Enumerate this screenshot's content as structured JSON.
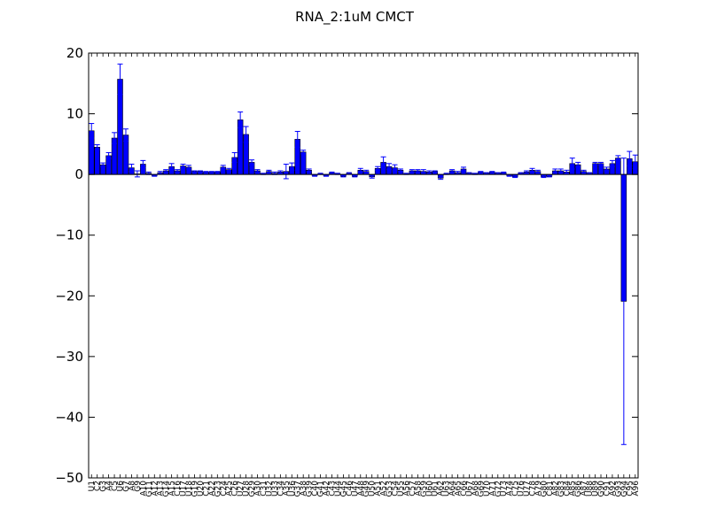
{
  "chart_data": {
    "type": "bar",
    "title": "RNA_2:1uM  CMCT",
    "xlabel": "",
    "ylabel": "",
    "ylim": [
      -50,
      20
    ],
    "yticks": [
      20,
      10,
      0,
      -10,
      -20,
      -30,
      -40,
      -50
    ],
    "ytick_labels": [
      "20",
      "10",
      "0",
      "−10",
      "−20",
      "−30",
      "−40",
      "−50"
    ],
    "grid": false,
    "bar_color": "#0000ff",
    "errorbar_color": "#0000ff",
    "categories": [
      "U1",
      "C2",
      "G3",
      "A4",
      "C5",
      "U6",
      "G7",
      "A8",
      "G9",
      "A10",
      "G11",
      "A12",
      "A13",
      "G14",
      "A15",
      "C16",
      "U17",
      "U18",
      "G19",
      "U20",
      "C21",
      "A22",
      "G23",
      "C24",
      "A25",
      "C26",
      "U27",
      "U28",
      "G29",
      "A30",
      "C31",
      "U32",
      "U33",
      "C34",
      "A35",
      "U36",
      "G37",
      "A38",
      "G39",
      "C40",
      "G41",
      "A42",
      "C43",
      "U44",
      "G45",
      "C46",
      "U47",
      "A48",
      "G49",
      "U50",
      "A51",
      "A52",
      "G53",
      "C54",
      "U55",
      "A56",
      "C57",
      "A58",
      "G59",
      "U60",
      "U61",
      "A62",
      "U63",
      "A64",
      "A65",
      "C66",
      "U67",
      "A68",
      "G69",
      "U70",
      "A71",
      "G72",
      "U73",
      "A74",
      "C75",
      "U76",
      "U77",
      "C78",
      "A79",
      "G80",
      "C81",
      "A82",
      "G83",
      "C84",
      "A85",
      "G86",
      "A87",
      "U88",
      "U89",
      "G90",
      "C91",
      "A92",
      "G93",
      "G94",
      "C95",
      "A96"
    ],
    "values": [
      7.2,
      4.5,
      1.6,
      3.1,
      6.0,
      15.7,
      6.5,
      1.1,
      0.1,
      1.7,
      0.2,
      -0.2,
      0.3,
      0.6,
      1.3,
      0.6,
      1.4,
      1.2,
      0.5,
      0.5,
      0.4,
      0.4,
      0.4,
      1.2,
      0.8,
      2.8,
      9.0,
      6.6,
      2.0,
      0.6,
      0.1,
      0.5,
      0.2,
      0.4,
      0.5,
      1.3,
      5.8,
      3.7,
      0.7,
      -0.2,
      0.1,
      -0.2,
      0.3,
      0.1,
      -0.3,
      0.2,
      -0.3,
      0.7,
      0.5,
      -0.4,
      1.0,
      2.0,
      1.3,
      1.1,
      0.7,
      0.1,
      0.6,
      0.6,
      0.5,
      0.4,
      0.5,
      -0.6,
      0.1,
      0.6,
      0.3,
      0.9,
      0.2,
      0.1,
      0.4,
      0.2,
      0.4,
      0.2,
      0.3,
      -0.2,
      -0.4,
      0.2,
      0.4,
      0.7,
      0.5,
      -0.4,
      -0.3,
      0.6,
      0.6,
      0.4,
      1.8,
      1.6,
      0.5,
      0.2,
      1.8,
      1.8,
      0.9,
      1.8,
      2.7,
      -20.9,
      2.6,
      2.1
    ],
    "errors": [
      1.2,
      0.4,
      0.3,
      0.5,
      0.9,
      2.5,
      1.0,
      0.6,
      0.5,
      0.6,
      0.2,
      0.1,
      0.2,
      0.2,
      0.5,
      0.2,
      0.3,
      0.3,
      0.1,
      0.1,
      0.1,
      0.1,
      0.1,
      0.3,
      0.2,
      0.8,
      1.3,
      1.3,
      0.4,
      0.2,
      0.1,
      0.2,
      0.2,
      0.2,
      1.2,
      0.6,
      1.3,
      0.3,
      0.2,
      0.1,
      0.1,
      0.1,
      0.1,
      0.1,
      0.1,
      0.1,
      0.1,
      0.3,
      0.2,
      0.2,
      0.3,
      0.9,
      0.5,
      0.5,
      0.2,
      0.1,
      0.2,
      0.2,
      0.3,
      0.2,
      0.1,
      0.2,
      0.1,
      0.2,
      0.2,
      0.3,
      0.1,
      0.1,
      0.1,
      0.1,
      0.1,
      0.1,
      0.1,
      0.1,
      0.1,
      0.1,
      0.2,
      0.3,
      0.2,
      0.1,
      0.1,
      0.3,
      0.3,
      0.3,
      0.9,
      0.4,
      0.2,
      0.1,
      0.2,
      0.2,
      0.3,
      0.5,
      0.4,
      23.6,
      1.2,
      1.1
    ]
  }
}
